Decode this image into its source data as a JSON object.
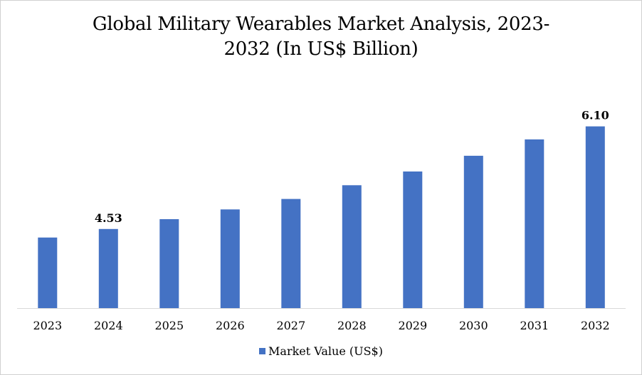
{
  "chart_data": {
    "type": "bar",
    "title_line1": "Global Military Wearables Market Analysis, 2023-",
    "title_line2": "2032 (In US$ Billion)",
    "categories": [
      "2023",
      "2024",
      "2025",
      "2026",
      "2027",
      "2028",
      "2029",
      "2030",
      "2031",
      "2032"
    ],
    "series": [
      {
        "name": "Market Value (US$)",
        "values": [
          4.4,
          4.53,
          4.68,
          4.83,
          4.99,
          5.2,
          5.41,
          5.65,
          5.9,
          6.1
        ]
      }
    ],
    "data_labels": [
      {
        "category": "2024",
        "text": "4.53"
      },
      {
        "category": "2032",
        "text": "6.10"
      }
    ],
    "ylim": [
      3.32,
      6.4
    ],
    "xlabel": "",
    "ylabel": "",
    "grid": false,
    "y_axis_visible": false,
    "legend_position": "bottom",
    "bar_color": "#4472C4",
    "axis_color": "#d9d9d9"
  }
}
